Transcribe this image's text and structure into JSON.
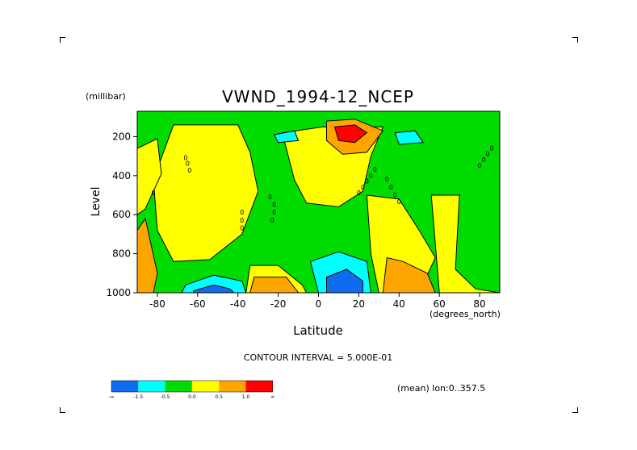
{
  "chart_data": {
    "type": "contour",
    "title": "VWND_1994-12_NCEP",
    "xlabel": "Latitude",
    "x_units": "(degrees_north)",
    "ylabel": "Level",
    "y_units": "(millibar)",
    "x_range": [
      -90,
      90
    ],
    "y_range": [
      1000,
      70
    ],
    "y_reversed": true,
    "x_ticks": [
      -80,
      -60,
      -40,
      -20,
      0,
      20,
      40,
      60,
      80
    ],
    "y_ticks": [
      200,
      400,
      600,
      800,
      1000
    ],
    "contour_interval_text": "CONTOUR INTERVAL = 5.000E-01",
    "averaging_note": "(mean) lon:0..357.5",
    "contour_labels": [
      "0",
      "0",
      "0",
      "0",
      "0",
      "0",
      "0",
      "0",
      "0",
      "0",
      "0",
      "0",
      "0",
      "0",
      "0",
      "0",
      "0",
      "0",
      "0",
      "0",
      "0",
      "0",
      "0",
      "0"
    ],
    "legend": {
      "bins": [
        {
          "color": "#0f6cf0",
          "label": "-∞"
        },
        {
          "color": "#00ffff",
          "label": "-1.5"
        },
        {
          "color": "#00dc00",
          "label": "-0.5"
        },
        {
          "color": "#ffff00",
          "label": "0.0"
        },
        {
          "color": "#ffa500",
          "label": "0.5"
        },
        {
          "color": "#ff0000",
          "label": "1.0"
        }
      ],
      "end_label": "∞"
    },
    "regions": [
      {
        "color": "#00dc00",
        "lat": [
          -90,
          90
        ],
        "lev": [
          70,
          1000
        ]
      },
      {
        "color": "#ffff00",
        "shape": "polygon",
        "points": [
          [
            -72,
            140
          ],
          [
            -40,
            140
          ],
          [
            -34,
            280
          ],
          [
            -30,
            480
          ],
          [
            -38,
            700
          ],
          [
            -54,
            830
          ],
          [
            -72,
            840
          ],
          [
            -80,
            680
          ],
          [
            -82,
            420
          ]
        ]
      },
      {
        "color": "#ffff00",
        "shape": "polygon",
        "points": [
          [
            -18,
            180
          ],
          [
            2,
            150
          ],
          [
            32,
            150
          ],
          [
            26,
            300
          ],
          [
            22,
            480
          ],
          [
            10,
            560
          ],
          [
            -6,
            540
          ],
          [
            -12,
            420
          ]
        ]
      },
      {
        "color": "#ffff00",
        "shape": "polygon",
        "points": [
          [
            24,
            500
          ],
          [
            40,
            520
          ],
          [
            50,
            680
          ],
          [
            58,
            820
          ],
          [
            50,
            1000
          ],
          [
            30,
            1000
          ],
          [
            26,
            800
          ]
        ]
      },
      {
        "color": "#ffff00",
        "shape": "polygon",
        "points": [
          [
            -90,
            260
          ],
          [
            -80,
            210
          ],
          [
            -78,
            390
          ],
          [
            -86,
            570
          ],
          [
            -90,
            600
          ]
        ]
      },
      {
        "color": "#ffff00",
        "shape": "polygon",
        "points": [
          [
            -34,
            860
          ],
          [
            -20,
            860
          ],
          [
            -8,
            960
          ],
          [
            -6,
            1000
          ],
          [
            -36,
            1000
          ]
        ]
      },
      {
        "color": "#ffff00",
        "shape": "polygon",
        "points": [
          [
            56,
            500
          ],
          [
            70,
            500
          ],
          [
            68,
            880
          ],
          [
            78,
            980
          ],
          [
            90,
            1000
          ],
          [
            60,
            1000
          ]
        ]
      },
      {
        "color": "#ffa500",
        "shape": "polygon",
        "points": [
          [
            4,
            120
          ],
          [
            18,
            110
          ],
          [
            32,
            170
          ],
          [
            24,
            280
          ],
          [
            12,
            290
          ],
          [
            4,
            220
          ]
        ]
      },
      {
        "color": "#ff0000",
        "shape": "polygon",
        "points": [
          [
            8,
            150
          ],
          [
            18,
            140
          ],
          [
            24,
            180
          ],
          [
            18,
            230
          ],
          [
            10,
            220
          ]
        ]
      },
      {
        "color": "#ffa500",
        "shape": "polygon",
        "points": [
          [
            34,
            820
          ],
          [
            42,
            840
          ],
          [
            54,
            900
          ],
          [
            58,
            1000
          ],
          [
            32,
            1000
          ]
        ]
      },
      {
        "color": "#ffa500",
        "shape": "polygon",
        "points": [
          [
            -32,
            920
          ],
          [
            -16,
            920
          ],
          [
            -10,
            1000
          ],
          [
            -34,
            1000
          ]
        ]
      },
      {
        "color": "#ffa500",
        "shape": "polygon",
        "points": [
          [
            -90,
            680
          ],
          [
            -86,
            620
          ],
          [
            -80,
            900
          ],
          [
            -82,
            1000
          ],
          [
            -90,
            1000
          ]
        ]
      },
      {
        "color": "#00ffff",
        "shape": "polygon",
        "points": [
          [
            -4,
            840
          ],
          [
            10,
            790
          ],
          [
            24,
            840
          ],
          [
            26,
            1000
          ],
          [
            0,
            1000
          ]
        ]
      },
      {
        "color": "#0f6cf0",
        "shape": "polygon",
        "points": [
          [
            4,
            920
          ],
          [
            14,
            880
          ],
          [
            22,
            940
          ],
          [
            22,
            1000
          ],
          [
            4,
            1000
          ]
        ]
      },
      {
        "color": "#00ffff",
        "shape": "polygon",
        "points": [
          [
            -66,
            960
          ],
          [
            -52,
            910
          ],
          [
            -38,
            940
          ],
          [
            -36,
            1000
          ],
          [
            -68,
            1000
          ]
        ]
      },
      {
        "color": "#0f6cf0",
        "shape": "polygon",
        "points": [
          [
            -62,
            990
          ],
          [
            -52,
            960
          ],
          [
            -44,
            980
          ],
          [
            -42,
            1000
          ],
          [
            -62,
            1000
          ]
        ]
      },
      {
        "color": "#00ffff",
        "shape": "polygon",
        "points": [
          [
            -22,
            190
          ],
          [
            -12,
            170
          ],
          [
            -10,
            220
          ],
          [
            -20,
            230
          ]
        ]
      },
      {
        "color": "#00ffff",
        "shape": "polygon",
        "points": [
          [
            38,
            180
          ],
          [
            48,
            170
          ],
          [
            52,
            230
          ],
          [
            40,
            240
          ]
        ]
      }
    ]
  }
}
